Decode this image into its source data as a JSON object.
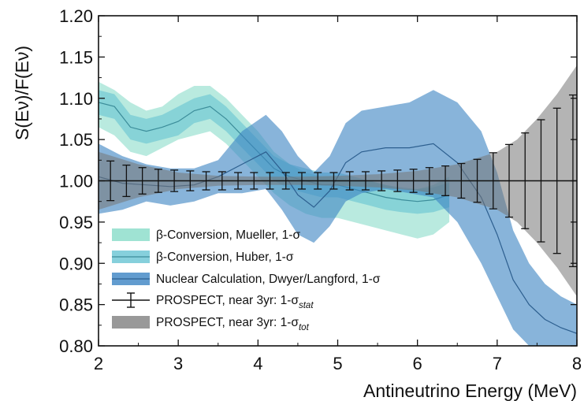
{
  "chart_data": {
    "type": "area",
    "xlabel": "Antineutrino Energy (MeV)",
    "ylabel": "S(Eν)/F(Eν)",
    "xlim": [
      2,
      8
    ],
    "ylim": [
      0.8,
      1.2
    ],
    "x_ticks": [
      "2",
      "3",
      "4",
      "5",
      "6",
      "7",
      "8"
    ],
    "y_ticks": [
      "0.80",
      "0.85",
      "0.90",
      "0.95",
      "1.00",
      "1.05",
      "1.10",
      "1.15",
      "1.20"
    ],
    "reference_line": 1.0,
    "colors": {
      "mueller": "#7fd9c4",
      "huber": "#5ec0d0",
      "dwyer": "#3f86c4",
      "prospect_tot": "#777777",
      "prospect_stat": "#111111"
    },
    "series": [
      {
        "name": "β-Conversion, Mueller, 1-σ",
        "kind": "band",
        "x": [
          2.0,
          2.2,
          2.4,
          2.6,
          2.8,
          3.0,
          3.2,
          3.4,
          3.6,
          3.8,
          4.0,
          4.2,
          4.4,
          4.6,
          4.8,
          5.0,
          5.2,
          5.4,
          5.6,
          5.8,
          6.0,
          6.2,
          6.4
        ],
        "lower": [
          1.065,
          1.055,
          1.035,
          1.03,
          1.04,
          1.05,
          1.055,
          1.06,
          1.045,
          1.025,
          1.005,
          0.985,
          0.97,
          0.96,
          0.955,
          0.955,
          0.95,
          0.945,
          0.94,
          0.935,
          0.93,
          0.935,
          0.95
        ],
        "upper": [
          1.12,
          1.11,
          1.095,
          1.085,
          1.09,
          1.105,
          1.115,
          1.115,
          1.1,
          1.08,
          1.06,
          1.035,
          1.02,
          1.01,
          1.005,
          1.005,
          1.0,
          1.0,
          0.995,
          0.99,
          0.99,
          0.995,
          1.005
        ]
      },
      {
        "name": "β-Conversion, Huber, 1-σ",
        "kind": "band",
        "x": [
          2.0,
          2.2,
          2.4,
          2.6,
          2.8,
          3.0,
          3.2,
          3.4,
          3.6,
          3.8,
          4.0,
          4.2,
          4.4,
          4.6,
          4.8,
          5.0,
          5.2,
          5.4,
          5.6,
          5.8,
          6.0,
          6.2,
          6.4
        ],
        "lower": [
          1.08,
          1.075,
          1.05,
          1.045,
          1.05,
          1.055,
          1.07,
          1.075,
          1.06,
          1.04,
          1.02,
          1.0,
          0.99,
          0.985,
          0.98,
          0.98,
          0.975,
          0.97,
          0.965,
          0.962,
          0.96,
          0.962,
          0.968
        ],
        "upper": [
          1.11,
          1.105,
          1.08,
          1.075,
          1.08,
          1.09,
          1.1,
          1.105,
          1.09,
          1.07,
          1.05,
          1.03,
          1.02,
          1.015,
          1.01,
          1.01,
          1.005,
          1.0,
          0.995,
          0.992,
          0.99,
          0.992,
          0.998
        ],
        "central": [
          1.095,
          1.09,
          1.065,
          1.06,
          1.065,
          1.072,
          1.085,
          1.09,
          1.075,
          1.055,
          1.035,
          1.015,
          1.005,
          1.0,
          0.995,
          0.995,
          0.99,
          0.985,
          0.98,
          0.977,
          0.975,
          0.977,
          0.983
        ]
      },
      {
        "name": "Nuclear Calculation, Dwyer/Langford, 1-σ",
        "kind": "band",
        "x": [
          2.0,
          2.3,
          2.6,
          2.9,
          3.2,
          3.5,
          3.8,
          4.1,
          4.3,
          4.5,
          4.7,
          4.9,
          5.1,
          5.3,
          5.6,
          5.9,
          6.2,
          6.5,
          6.8,
          7.0,
          7.2,
          7.4,
          7.6,
          7.8,
          8.0
        ],
        "lower": [
          0.96,
          0.965,
          0.975,
          0.97,
          0.975,
          0.985,
          0.985,
          0.99,
          0.965,
          0.935,
          0.925,
          0.945,
          0.975,
          0.985,
          0.99,
          0.985,
          0.98,
          0.95,
          0.9,
          0.86,
          0.82,
          0.8,
          0.79,
          0.785,
          0.78
        ],
        "upper": [
          1.045,
          1.03,
          1.02,
          1.015,
          1.015,
          1.025,
          1.06,
          1.08,
          1.06,
          1.03,
          1.01,
          1.03,
          1.07,
          1.085,
          1.09,
          1.095,
          1.11,
          1.095,
          1.06,
          1.01,
          0.94,
          0.9,
          0.875,
          0.86,
          0.85
        ],
        "central": [
          1.005,
          0.997,
          0.995,
          0.993,
          0.995,
          1.005,
          1.02,
          1.035,
          1.012,
          0.983,
          0.968,
          0.988,
          1.022,
          1.035,
          1.04,
          1.04,
          1.045,
          1.022,
          0.98,
          0.935,
          0.88,
          0.85,
          0.832,
          0.822,
          0.815
        ]
      },
      {
        "name": "PROSPECT, near 3yr: 1-σtot",
        "kind": "band",
        "x": [
          2.0,
          2.5,
          3.0,
          3.5,
          4.0,
          4.5,
          5.0,
          5.5,
          6.0,
          6.5,
          7.0,
          7.25,
          7.5,
          7.75,
          8.0
        ],
        "lower": [
          0.965,
          0.98,
          0.99,
          0.994,
          0.995,
          0.995,
          0.994,
          0.992,
          0.988,
          0.98,
          0.965,
          0.95,
          0.925,
          0.895,
          0.86
        ],
        "upper": [
          1.035,
          1.02,
          1.01,
          1.006,
          1.005,
          1.005,
          1.006,
          1.008,
          1.012,
          1.02,
          1.035,
          1.05,
          1.075,
          1.105,
          1.14
        ]
      },
      {
        "name": "PROSPECT, near 3yr: 1-σstat",
        "kind": "errorbar",
        "x": [
          2.15,
          2.35,
          2.55,
          2.75,
          2.95,
          3.15,
          3.35,
          3.55,
          3.75,
          3.95,
          4.15,
          4.35,
          4.55,
          4.75,
          4.95,
          5.15,
          5.35,
          5.55,
          5.75,
          5.95,
          6.15,
          6.35,
          6.55,
          6.75,
          6.95,
          7.15,
          7.35,
          7.55,
          7.75,
          7.95
        ],
        "y": [
          1.0,
          1.0,
          1.0,
          1.0,
          1.0,
          1.0,
          1.0,
          1.0,
          1.0,
          1.0,
          1.0,
          1.0,
          1.0,
          1.0,
          1.0,
          1.0,
          1.0,
          1.0,
          1.0,
          1.0,
          1.0,
          1.0,
          1.0,
          1.0,
          1.0,
          1.0,
          1.0,
          1.0,
          1.0,
          1.0
        ],
        "err": [
          0.024,
          0.019,
          0.016,
          0.014,
          0.013,
          0.012,
          0.011,
          0.011,
          0.01,
          0.01,
          0.01,
          0.01,
          0.01,
          0.01,
          0.01,
          0.011,
          0.011,
          0.012,
          0.013,
          0.014,
          0.016,
          0.018,
          0.021,
          0.026,
          0.034,
          0.044,
          0.058,
          0.074,
          0.088,
          0.104
        ]
      }
    ],
    "legend": {
      "placement": "bottom-left",
      "entries": [
        {
          "text_main": "β-Conversion, Mueller, 1-σ",
          "sub": "",
          "swatch": "mueller"
        },
        {
          "text_main": "β-Conversion, Huber, 1-σ",
          "sub": "",
          "swatch": "huber"
        },
        {
          "text_main": "Nuclear Calculation, Dwyer/Langford, 1-σ",
          "sub": "",
          "swatch": "dwyer"
        },
        {
          "text_main": "PROSPECT, near 3yr: 1-σ",
          "sub": "stat",
          "swatch": "errorbar"
        },
        {
          "text_main": "PROSPECT, near 3yr: 1-σ",
          "sub": "tot",
          "swatch": "prospect_tot"
        }
      ]
    }
  }
}
